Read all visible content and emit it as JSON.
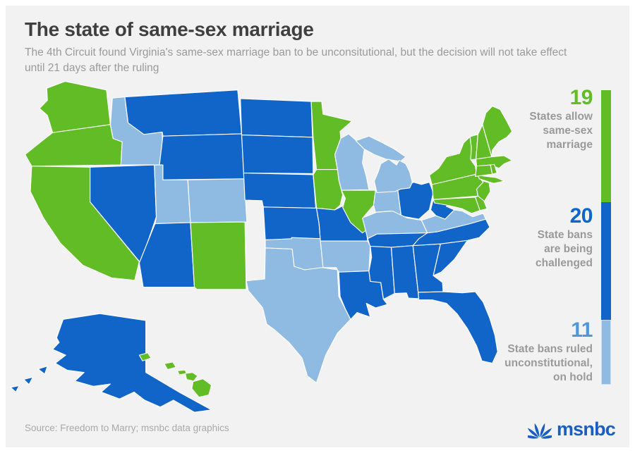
{
  "title": "The state of same-sex marriage",
  "subtitle_lines": [
    "The 4th Circuit found Virginia's same-sex marriage ban to be unconsitutional, but the decision will not take effect",
    "until 21 days after the ruling"
  ],
  "source": "Source: Freedom to Marry; msnbc data graphics",
  "brand": {
    "text": "msnbc",
    "color": "#1b5ec2",
    "icon": "nbc-peacock-icon"
  },
  "colors": {
    "allow": "#62bc26",
    "challenged": "#1164c8",
    "on_hold": "#8fbbe3",
    "background": "#f2f2f3",
    "title_text": "#3f3f3f",
    "muted_text": "#9a9a9a"
  },
  "legend": [
    {
      "key": "allow",
      "count": "19",
      "value": 19,
      "number_color": "#62bc26",
      "bar_color": "#62bc26",
      "label_lines": [
        "States allow",
        "same-sex",
        "marriage"
      ]
    },
    {
      "key": "challenged",
      "count": "20",
      "value": 20,
      "number_color": "#1164c8",
      "bar_color": "#1164c8",
      "label_lines": [
        "State bans",
        "are being",
        "challenged"
      ]
    },
    {
      "key": "on_hold",
      "count": "11",
      "value": 11,
      "number_color": "#4f97d8",
      "bar_color": "#8fbbe3",
      "label_lines": [
        "State bans ruled",
        "unconstitutional,",
        "on hold"
      ]
    }
  ],
  "states": {
    "WA": "allow",
    "OR": "allow",
    "CA": "allow",
    "NM": "allow",
    "MN": "allow",
    "IA": "allow",
    "IL": "allow",
    "MD": "allow",
    "DE": "allow",
    "NJ": "allow",
    "PA": "allow",
    "NY": "allow",
    "CT": "allow",
    "RI": "allow",
    "MA": "allow",
    "VT": "allow",
    "NH": "allow",
    "ME": "allow",
    "HI": "allow",
    "MT": "challenged",
    "NV": "challenged",
    "WY": "challenged",
    "AZ": "challenged",
    "ND": "challenged",
    "SD": "challenged",
    "NE": "challenged",
    "KS": "challenged",
    "MO": "challenged",
    "LA": "challenged",
    "OH": "challenged",
    "TN": "challenged",
    "MS": "challenged",
    "AL": "challenged",
    "GA": "challenged",
    "FL": "challenged",
    "SC": "challenged",
    "NC": "challenged",
    "WV": "challenged",
    "AK": "challenged",
    "ID": "on_hold",
    "UT": "on_hold",
    "CO": "on_hold",
    "TX": "on_hold",
    "OK": "on_hold",
    "AR": "on_hold",
    "WI": "on_hold",
    "MI": "on_hold",
    "IN": "on_hold",
    "KY": "on_hold",
    "VA": "on_hold"
  }
}
